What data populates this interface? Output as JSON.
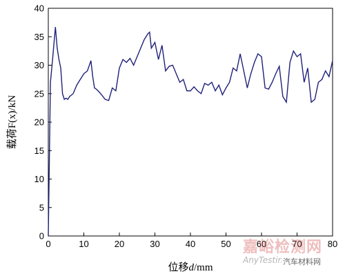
{
  "chart_data": {
    "type": "line",
    "xlabel_prefix": "位移",
    "xlabel_var": "d",
    "xlabel_unit": "/mm",
    "ylabel": "载荷F(x)/kN",
    "xlim": [
      0,
      80
    ],
    "ylim": [
      0,
      40
    ],
    "xticks": [
      0,
      10,
      20,
      30,
      40,
      50,
      60,
      70,
      80
    ],
    "yticks": [
      0,
      5,
      10,
      15,
      20,
      25,
      30,
      35,
      40
    ],
    "line_color": "#1f1f7a",
    "series": [
      {
        "x": [
          0,
          0.6,
          1.2,
          2.0,
          2.5,
          3.0,
          3.5,
          4.0,
          4.5,
          5.0,
          5.5,
          6.0,
          7.0,
          8.0,
          9.0,
          10.0,
          11.0,
          12.0,
          12.5,
          13.0,
          13.5,
          14.0,
          15.0,
          16.0,
          17.0,
          18.0,
          19.0,
          20.0,
          21.0,
          22.0,
          23.0,
          24.0,
          25.0,
          26.0,
          27.0,
          28.0,
          28.5,
          29.0,
          30.0,
          31.0,
          32.0,
          33.0,
          34.0,
          35.0,
          36.0,
          37.0,
          38.0,
          39.0,
          40.0,
          41.0,
          42.0,
          43.0,
          44.0,
          45.0,
          46.0,
          47.0,
          48.0,
          49.0,
          50.0,
          51.0,
          52.0,
          53.0,
          54.0,
          55.0,
          56.0,
          57.0,
          58.0,
          59.0,
          60.0,
          61.0,
          62.0,
          63.0,
          64.0,
          65.0,
          66.0,
          67.0,
          68.0,
          69.0,
          70.0,
          71.0,
          72.0,
          73.0,
          74.0,
          75.0,
          76.0,
          77.0,
          78.0,
          79.0,
          80.0
        ],
        "y": [
          0,
          27,
          31,
          36.7,
          33,
          31,
          29.5,
          25,
          24,
          24.2,
          24,
          24.5,
          25,
          26.5,
          27.5,
          28.5,
          29,
          30.8,
          28,
          26,
          25.8,
          25.5,
          24.8,
          24,
          23.8,
          26,
          25.5,
          29.5,
          31,
          30.5,
          31.2,
          30,
          31.5,
          33,
          34.5,
          35.5,
          35.8,
          33,
          34,
          31,
          33.5,
          29,
          29.8,
          30,
          28.5,
          27,
          27.5,
          25.5,
          25.5,
          26.2,
          25.5,
          25,
          26.8,
          26.5,
          27,
          25.5,
          26.5,
          24.8,
          26,
          27,
          29.5,
          29,
          32,
          29,
          26,
          28.5,
          30.5,
          32,
          31.5,
          26,
          25.8,
          27,
          28.5,
          29.8,
          24.5,
          23.5,
          30.5,
          32.5,
          31.5,
          32,
          27,
          29.5,
          23.5,
          24,
          27,
          27.5,
          29,
          28,
          30.8
        ]
      }
    ]
  },
  "watermark": {
    "main": "嘉峪检测网",
    "sub": "AnyTesting.com",
    "tag": "汽车材料网"
  }
}
